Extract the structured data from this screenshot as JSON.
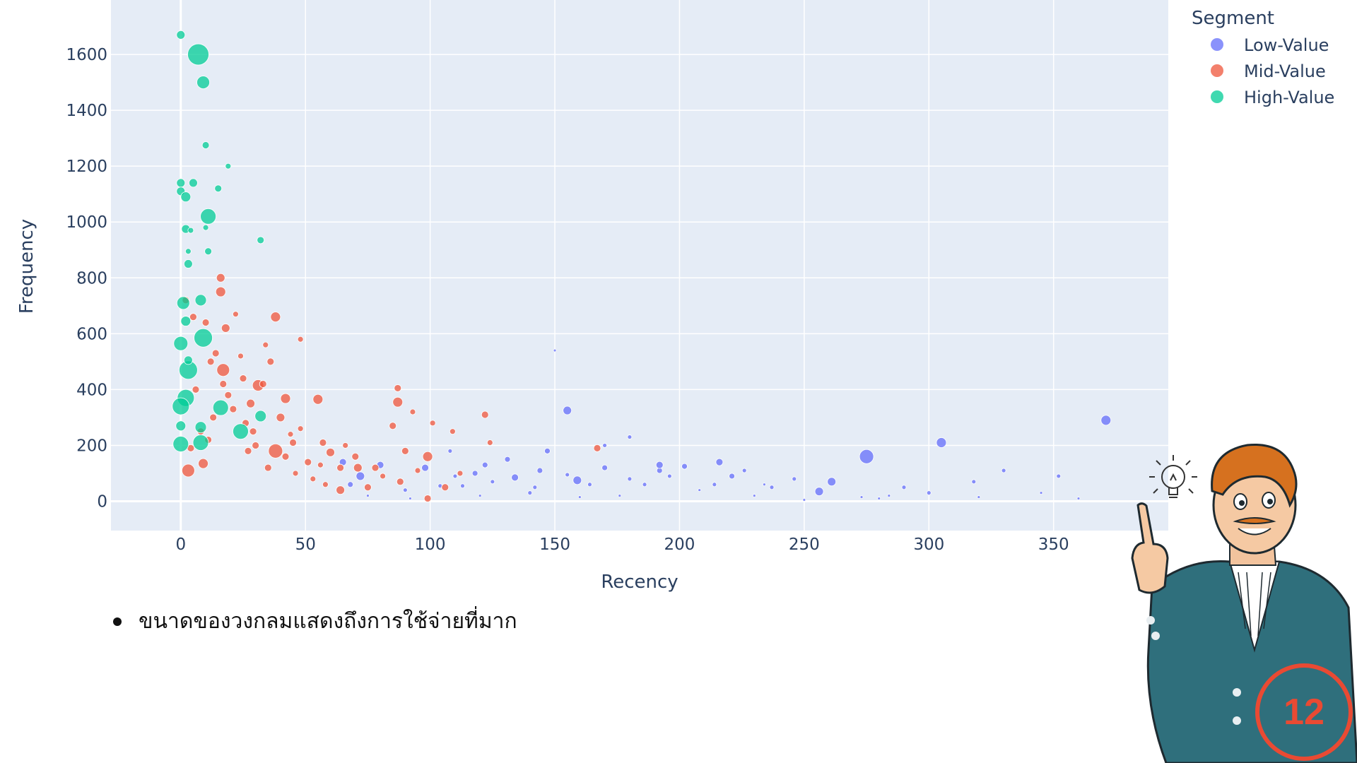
{
  "chart_data": {
    "type": "scatter",
    "xlabel": "Recency",
    "ylabel": "Frequency",
    "xlim": [
      -28,
      396
    ],
    "ylim": [
      -105,
      1795
    ],
    "xticks": [
      0,
      50,
      100,
      150,
      200,
      250,
      300,
      350
    ],
    "yticks": [
      0,
      200,
      400,
      600,
      800,
      1000,
      1200,
      1400,
      1600
    ],
    "legend": {
      "title": "Segment",
      "position": "top-right"
    },
    "size_note": "marker size encodes spending",
    "series": [
      {
        "name": "Low-Value",
        "color": "#636efa",
        "points": [
          [
            150,
            540
          ],
          [
            371,
            290
          ],
          [
            275,
            160
          ],
          [
            305,
            210
          ],
          [
            155,
            325
          ],
          [
            202,
            125
          ],
          [
            192,
            110
          ],
          [
            216,
            140
          ],
          [
            237,
            50
          ],
          [
            261,
            70
          ],
          [
            221,
            90
          ],
          [
            186,
            60
          ],
          [
            300,
            30
          ],
          [
            234,
            60
          ],
          [
            144,
            110
          ],
          [
            134,
            85
          ],
          [
            125,
            70
          ],
          [
            113,
            55
          ],
          [
            98,
            120
          ],
          [
            176,
            20
          ],
          [
            142,
            50
          ],
          [
            159,
            75
          ],
          [
            147,
            180
          ],
          [
            192,
            130
          ],
          [
            110,
            90
          ],
          [
            80,
            130
          ],
          [
            90,
            40
          ],
          [
            104,
            55
          ],
          [
            208,
            40
          ],
          [
            230,
            20
          ],
          [
            118,
            100
          ],
          [
            140,
            30
          ],
          [
            164,
            60
          ],
          [
            170,
            120
          ],
          [
            131,
            150
          ],
          [
            196,
            90
          ],
          [
            256,
            35
          ],
          [
            284,
            20
          ],
          [
            320,
            15
          ],
          [
            345,
            30
          ],
          [
            360,
            10
          ],
          [
            280,
            10
          ],
          [
            250,
            5
          ],
          [
            160,
            15
          ],
          [
            120,
            20
          ],
          [
            92,
            10
          ],
          [
            75,
            20
          ],
          [
            68,
            60
          ],
          [
            180,
            80
          ],
          [
            65,
            140
          ],
          [
            72,
            90
          ],
          [
            214,
            60
          ],
          [
            246,
            80
          ],
          [
            330,
            110
          ],
          [
            352,
            90
          ],
          [
            290,
            50
          ],
          [
            318,
            70
          ],
          [
            226,
            110
          ],
          [
            180,
            230
          ],
          [
            170,
            200
          ],
          [
            108,
            180
          ],
          [
            122,
            130
          ],
          [
            155,
            95
          ],
          [
            273,
            15
          ]
        ],
        "sizes": [
          2,
          7,
          10,
          7,
          6,
          4,
          4,
          5,
          3,
          6,
          4,
          3,
          3,
          2,
          4,
          5,
          3,
          3,
          5,
          2,
          3,
          6,
          4,
          5,
          3,
          5,
          3,
          3,
          2,
          2,
          4,
          3,
          3,
          4,
          4,
          3,
          6,
          2,
          2,
          2,
          2,
          2,
          2,
          2,
          2,
          2,
          2,
          4,
          3,
          5,
          6,
          3,
          3,
          3,
          3,
          3,
          3,
          3,
          3,
          3,
          3,
          4,
          3,
          2
        ]
      },
      {
        "name": "Mid-Value",
        "color": "#ef553b",
        "points": [
          [
            38,
            180
          ],
          [
            99,
            160
          ],
          [
            17,
            470
          ],
          [
            31,
            415
          ],
          [
            38,
            660
          ],
          [
            42,
            368
          ],
          [
            55,
            365
          ],
          [
            87,
            355
          ],
          [
            87,
            405
          ],
          [
            64,
            40
          ],
          [
            75,
            50
          ],
          [
            99,
            10
          ],
          [
            122,
            310
          ],
          [
            167,
            190
          ],
          [
            51,
            140
          ],
          [
            9,
            135
          ],
          [
            3,
            110
          ],
          [
            16,
            800
          ],
          [
            16,
            750
          ],
          [
            22,
            670
          ],
          [
            18,
            620
          ],
          [
            36,
            500
          ],
          [
            14,
            530
          ],
          [
            25,
            440
          ],
          [
            28,
            350
          ],
          [
            33,
            420
          ],
          [
            12,
            500
          ],
          [
            6,
            400
          ],
          [
            40,
            300
          ],
          [
            45,
            210
          ],
          [
            60,
            175
          ],
          [
            71,
            120
          ],
          [
            78,
            120
          ],
          [
            88,
            70
          ],
          [
            90,
            180
          ],
          [
            106,
            50
          ],
          [
            48,
            580
          ],
          [
            85,
            270
          ],
          [
            109,
            250
          ],
          [
            124,
            210
          ],
          [
            70,
            160
          ],
          [
            57,
            210
          ],
          [
            64,
            120
          ],
          [
            93,
            320
          ],
          [
            44,
            240
          ],
          [
            2,
            720
          ],
          [
            29,
            250
          ],
          [
            5,
            660
          ],
          [
            19,
            380
          ],
          [
            27,
            180
          ],
          [
            35,
            120
          ],
          [
            11,
            220
          ],
          [
            13,
            300
          ],
          [
            21,
            330
          ],
          [
            26,
            280
          ],
          [
            30,
            200
          ],
          [
            42,
            160
          ],
          [
            46,
            100
          ],
          [
            53,
            80
          ],
          [
            58,
            60
          ],
          [
            66,
            200
          ],
          [
            81,
            90
          ],
          [
            95,
            110
          ],
          [
            101,
            280
          ],
          [
            112,
            100
          ],
          [
            8,
            250
          ],
          [
            4,
            190
          ],
          [
            24,
            520
          ],
          [
            34,
            560
          ],
          [
            17,
            420
          ],
          [
            10,
            640
          ],
          [
            48,
            260
          ],
          [
            56,
            130
          ]
        ],
        "sizes": [
          10,
          7,
          9,
          8,
          7,
          7,
          7,
          7,
          5,
          6,
          5,
          5,
          5,
          5,
          5,
          7,
          9,
          6,
          7,
          4,
          6,
          5,
          5,
          5,
          6,
          5,
          5,
          5,
          6,
          5,
          6,
          6,
          5,
          5,
          5,
          5,
          4,
          5,
          4,
          4,
          5,
          5,
          5,
          4,
          4,
          5,
          5,
          5,
          5,
          5,
          5,
          5,
          5,
          5,
          5,
          5,
          5,
          4,
          4,
          4,
          4,
          4,
          4,
          4,
          4,
          5,
          5,
          4,
          4,
          5,
          5,
          4,
          4
        ]
      },
      {
        "name": "High-Value",
        "color": "#00cc96",
        "points": [
          [
            7,
            1600
          ],
          [
            9,
            1500
          ],
          [
            0,
            1670
          ],
          [
            11,
            1020
          ],
          [
            10,
            1275
          ],
          [
            19,
            1200
          ],
          [
            0,
            1140
          ],
          [
            5,
            1140
          ],
          [
            0,
            1110
          ],
          [
            2,
            1090
          ],
          [
            15,
            1120
          ],
          [
            32,
            935
          ],
          [
            2,
            975
          ],
          [
            4,
            970
          ],
          [
            11,
            895
          ],
          [
            10,
            980
          ],
          [
            3,
            895
          ],
          [
            3,
            850
          ],
          [
            1,
            710
          ],
          [
            8,
            720
          ],
          [
            9,
            585
          ],
          [
            0,
            565
          ],
          [
            2,
            645
          ],
          [
            3,
            470
          ],
          [
            2,
            370
          ],
          [
            0,
            340
          ],
          [
            16,
            335
          ],
          [
            24,
            250
          ],
          [
            32,
            305
          ],
          [
            0,
            205
          ],
          [
            8,
            210
          ],
          [
            8,
            265
          ],
          [
            0,
            270
          ],
          [
            3,
            505
          ]
        ],
        "sizes": [
          15,
          9,
          6,
          11,
          5,
          4,
          6,
          6,
          6,
          7,
          5,
          5,
          6,
          4,
          5,
          4,
          4,
          6,
          9,
          8,
          13,
          10,
          7,
          13,
          12,
          12,
          11,
          11,
          8,
          11,
          11,
          8,
          7,
          6
        ]
      }
    ]
  },
  "note": {
    "text": "ขนาดของวงกลมแสดงถึงการใช้จ่ายที่มาก"
  },
  "badge": {
    "number": "12",
    "color": "#e94a33"
  }
}
